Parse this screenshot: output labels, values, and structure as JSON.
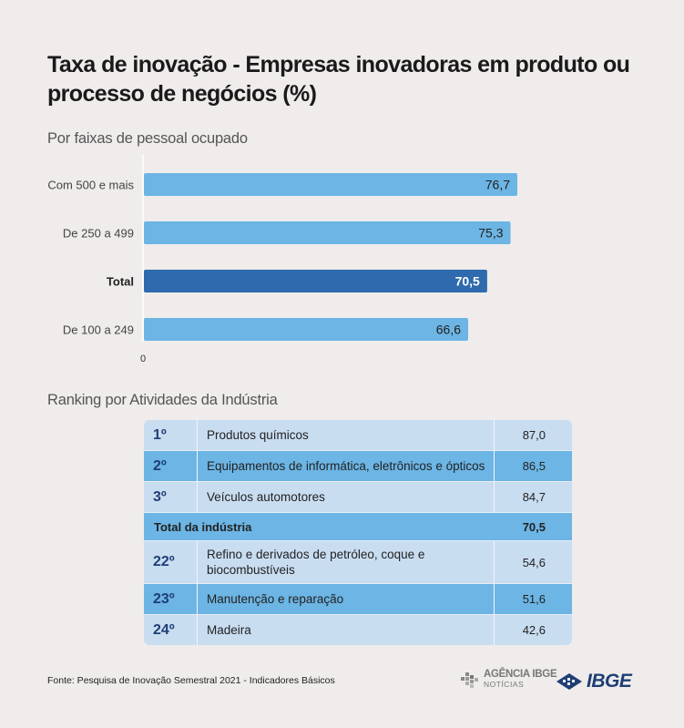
{
  "title": "Taxa de inovação - Empresas inovadoras em produto ou processo de negócios (%)",
  "subtitle_chart": "Por faixas de pessoal ocupado",
  "chart_data": {
    "type": "bar",
    "orientation": "horizontal",
    "categories": [
      "Com 500 e mais",
      "De 250 a 499",
      "Total",
      "De 100 a 249"
    ],
    "values": [
      76.7,
      75.3,
      70.5,
      66.6
    ],
    "value_labels": [
      "76,7",
      "75,3",
      "70,5",
      "66,6"
    ],
    "highlight": [
      false,
      false,
      true,
      false
    ],
    "colors": {
      "normal": "#6cb5e4",
      "highlight": "#2e6aad"
    },
    "xlim": [
      0,
      80
    ],
    "x_tick_labels": [
      "0"
    ],
    "grid": false
  },
  "subtitle_table": "Ranking por Atividades da Indústria",
  "table": {
    "rows": [
      {
        "rank": "1º",
        "activity": "Produtos químicos",
        "value": "87,0",
        "style": "light"
      },
      {
        "rank": "2º",
        "activity": "Equipamentos de informática, eletrônicos e ópticos",
        "value": "86,5",
        "style": "mid"
      },
      {
        "rank": "3º",
        "activity": "Veículos automotores",
        "value": "84,7",
        "style": "light"
      },
      {
        "rank": "",
        "activity": "Total da indústria",
        "value": "70,5",
        "style": "total"
      },
      {
        "rank": "22º",
        "activity": "Refino e derivados de petróleo, coque e biocombustíveis",
        "value": "54,6",
        "style": "light"
      },
      {
        "rank": "23º",
        "activity": "Manutenção e reparação",
        "value": "51,6",
        "style": "mid"
      },
      {
        "rank": "24º",
        "activity": "Madeira",
        "value": "42,6",
        "style": "light"
      }
    ]
  },
  "source": "Fonte: Pesquisa de Inovação Semestral 2021 - Indicadores Básicos",
  "logos": {
    "agencia_line1": "AGÊNCIA IBGE",
    "agencia_line2": "NOTÍCIAS",
    "ibge": "IBGE"
  }
}
